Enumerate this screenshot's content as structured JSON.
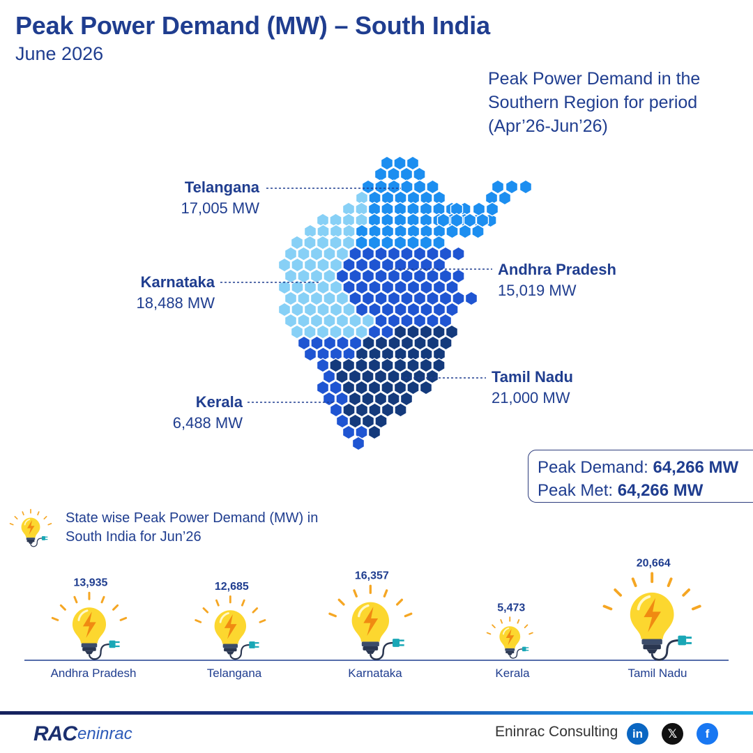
{
  "header": {
    "title": "Peak Power Demand (MW) – South India",
    "subtitle": "June 2026"
  },
  "map": {
    "caption": "Peak Power Demand in the Southern Region for period (Apr’26-Jun’26)",
    "states": [
      {
        "name": "Telangana",
        "value": "17,005 MW",
        "color": "#1c8ef0"
      },
      {
        "name": "Karnataka",
        "value": "18,488 MW",
        "color": "#87d0f6"
      },
      {
        "name": "Andhra Pradesh",
        "value": "15,019 MW",
        "color": "#1f55d2"
      },
      {
        "name": "Tamil Nadu",
        "value": "21,000 MW",
        "color": "#143a7c"
      },
      {
        "name": "Kerala",
        "value": "6,488 MW",
        "color": "#1f55d2"
      }
    ]
  },
  "summary": {
    "demand_label": "Peak Demand:",
    "demand_value": "64,266 MW",
    "met_label": "Peak Met:",
    "met_value": "64,266 MW"
  },
  "bars_caption": "State wise Peak Power Demand (MW) in South India for Jun’26",
  "chart_data": {
    "type": "bar",
    "title": "State wise Peak Power Demand (MW) in South India for Jun’26",
    "categories": [
      "Andhra Pradesh",
      "Telangana",
      "Karnataka",
      "Kerala",
      "Tamil Nadu"
    ],
    "values": [
      13935,
      12685,
      16357,
      5473,
      20664
    ],
    "value_labels": [
      "13,935",
      "12,685",
      "16,357",
      "5,473",
      "20,664"
    ],
    "mark": "bulb-icon",
    "colors": {
      "bulb": "#fcd72f",
      "ray": "#f5a623",
      "bolt": "#f08a12",
      "plug": "#1aa7b6"
    }
  },
  "footer": {
    "logo_rac": "RAC",
    "logo_en": "eninrac",
    "company": "Eninrac Consulting",
    "social": [
      {
        "icon": "linkedin-icon",
        "glyph": "in",
        "color": "#0a66c2"
      },
      {
        "icon": "x-icon",
        "glyph": "𝕏",
        "color": "#111111"
      },
      {
        "icon": "facebook-icon",
        "glyph": "f",
        "color": "#1877f2"
      }
    ]
  }
}
